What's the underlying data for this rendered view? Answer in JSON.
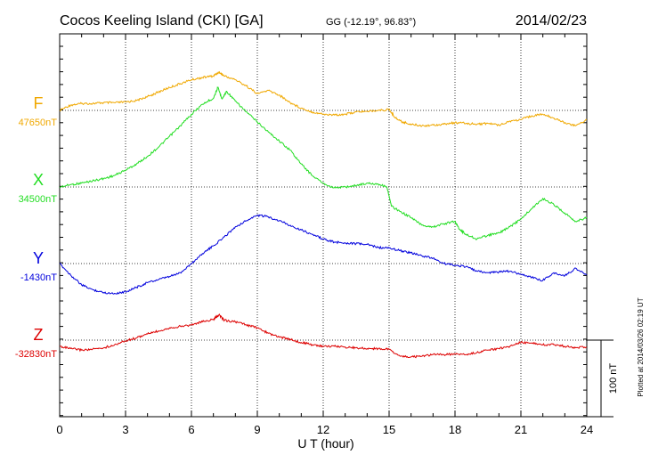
{
  "header": {
    "station": "Cocos Keeling Island (CKI)  [GA]",
    "coords": "GG (-12.19°,  96.83°)",
    "date": "2014/02/23"
  },
  "footer": {
    "plotted": "Plotted at 2014/03/26 02:19 UT",
    "scale_label": "100 nT"
  },
  "chart_data": {
    "type": "line",
    "xlabel": "U T (hour)",
    "xlim": [
      0,
      24
    ],
    "xticks": [
      "0",
      "3",
      "6",
      "9",
      "12",
      "15",
      "18",
      "21",
      "24"
    ],
    "scale_nT": 100,
    "grid": true,
    "series": [
      {
        "name": "F",
        "baseline_label": "47650nT",
        "color": "#f0a800",
        "x": [
          0,
          0.5,
          1,
          1.5,
          2,
          2.5,
          3,
          3.5,
          4,
          4.5,
          5,
          5.5,
          6,
          6.5,
          7,
          7.25,
          7.5,
          8,
          8.5,
          9,
          9.5,
          10,
          10.5,
          11,
          11.5,
          12,
          12.5,
          13,
          13.5,
          14,
          14.5,
          15,
          15.3,
          15.6,
          16,
          16.5,
          17,
          17.5,
          18,
          18.5,
          19,
          19.5,
          20,
          20.5,
          21,
          21.5,
          22,
          22.5,
          23,
          23.5,
          24
        ],
        "y": [
          47650,
          47657,
          47659,
          47659,
          47660,
          47660,
          47661,
          47663,
          47668,
          47674,
          47680,
          47685,
          47690,
          47693,
          47695,
          47700,
          47695,
          47690,
          47682,
          47672,
          47676,
          47670,
          47660,
          47653,
          47648,
          47645,
          47644,
          47645,
          47648,
          47649,
          47650,
          47651,
          47640,
          47635,
          47632,
          47630,
          47631,
          47632,
          47634,
          47633,
          47632,
          47633,
          47631,
          47636,
          47638,
          47643,
          47645,
          47640,
          47634,
          47630,
          47638
        ]
      },
      {
        "name": "X",
        "baseline_label": "34500nT",
        "color": "#22dd22",
        "x": [
          0,
          0.5,
          1,
          1.5,
          2,
          2.5,
          3,
          3.5,
          4,
          4.5,
          5,
          5.5,
          6,
          6.5,
          7,
          7.2,
          7.4,
          7.6,
          8,
          8.5,
          9,
          9.5,
          10,
          10.5,
          11,
          11.5,
          12,
          12.5,
          13,
          13.5,
          14,
          14.5,
          14.9,
          15.1,
          15.5,
          16,
          16.5,
          17,
          17.5,
          18,
          18.2,
          18.5,
          19,
          19.5,
          20,
          20.5,
          21,
          21.5,
          22,
          22.5,
          23,
          23.5,
          24
        ],
        "y": [
          34500,
          34503,
          34505,
          34508,
          34511,
          34515,
          34522,
          34530,
          34540,
          34552,
          34566,
          34580,
          34595,
          34608,
          34616,
          34630,
          34615,
          34625,
          34612,
          34598,
          34585,
          34572,
          34560,
          34548,
          34530,
          34515,
          34505,
          34499,
          34500,
          34502,
          34505,
          34504,
          34500,
          34475,
          34468,
          34460,
          34450,
          34448,
          34452,
          34455,
          34445,
          34438,
          34432,
          34437,
          34440,
          34448,
          34458,
          34472,
          34485,
          34477,
          34466,
          34455,
          34460
        ]
      },
      {
        "name": "Y",
        "baseline_label": "-1430nT",
        "color": "#0000dd",
        "x": [
          0,
          0.5,
          1,
          1.5,
          2,
          2.5,
          3,
          3.5,
          4,
          4.5,
          5,
          5.5,
          6,
          6.5,
          7,
          7.5,
          8,
          8.5,
          9,
          9.5,
          10,
          10.5,
          11,
          11.5,
          12,
          12.5,
          13,
          13.5,
          14,
          14.5,
          15,
          15.5,
          16,
          16.5,
          17,
          17.5,
          18,
          18.5,
          19,
          19.5,
          20,
          20.5,
          21,
          21.5,
          22,
          22.5,
          23,
          23.5,
          24
        ],
        "y": [
          -1430,
          -1445,
          -1458,
          -1464,
          -1468,
          -1469,
          -1467,
          -1461,
          -1455,
          -1451,
          -1447,
          -1442,
          -1430,
          -1417,
          -1407,
          -1395,
          -1382,
          -1374,
          -1367,
          -1369,
          -1374,
          -1380,
          -1386,
          -1392,
          -1398,
          -1402,
          -1403,
          -1404,
          -1405,
          -1409,
          -1410,
          -1413,
          -1416,
          -1420,
          -1423,
          -1430,
          -1432,
          -1434,
          -1440,
          -1442,
          -1441,
          -1440,
          -1444,
          -1448,
          -1452,
          -1442,
          -1446,
          -1436,
          -1445
        ]
      },
      {
        "name": "Z",
        "baseline_label": "-32830nT",
        "color": "#dd0000",
        "x": [
          0,
          0.5,
          1,
          1.5,
          2,
          2.5,
          3,
          3.5,
          4,
          4.5,
          5,
          5.5,
          6,
          6.5,
          7,
          7.25,
          7.5,
          8,
          8.5,
          9,
          9.5,
          10,
          10.5,
          11,
          11.5,
          12,
          12.5,
          13,
          13.5,
          14,
          14.5,
          15,
          15.5,
          16,
          16.5,
          17,
          17.5,
          18,
          18.5,
          19,
          19.5,
          20,
          20.5,
          21,
          21.5,
          22,
          22.5,
          23,
          23.5,
          24
        ],
        "y": [
          -32838,
          -32841,
          -32843,
          -32842,
          -32840,
          -32836,
          -32831,
          -32827,
          -32822,
          -32818,
          -32814,
          -32812,
          -32810,
          -32806,
          -32803,
          -32797,
          -32804,
          -32806,
          -32810,
          -32814,
          -32821,
          -32826,
          -32829,
          -32833,
          -32836,
          -32838,
          -32838,
          -32839,
          -32840,
          -32841,
          -32841,
          -32842,
          -32851,
          -32852,
          -32851,
          -32849,
          -32849,
          -32848,
          -32849,
          -32846,
          -32843,
          -32841,
          -32838,
          -32833,
          -32834,
          -32836,
          -32836,
          -32838,
          -32840,
          -32839
        ]
      }
    ]
  }
}
